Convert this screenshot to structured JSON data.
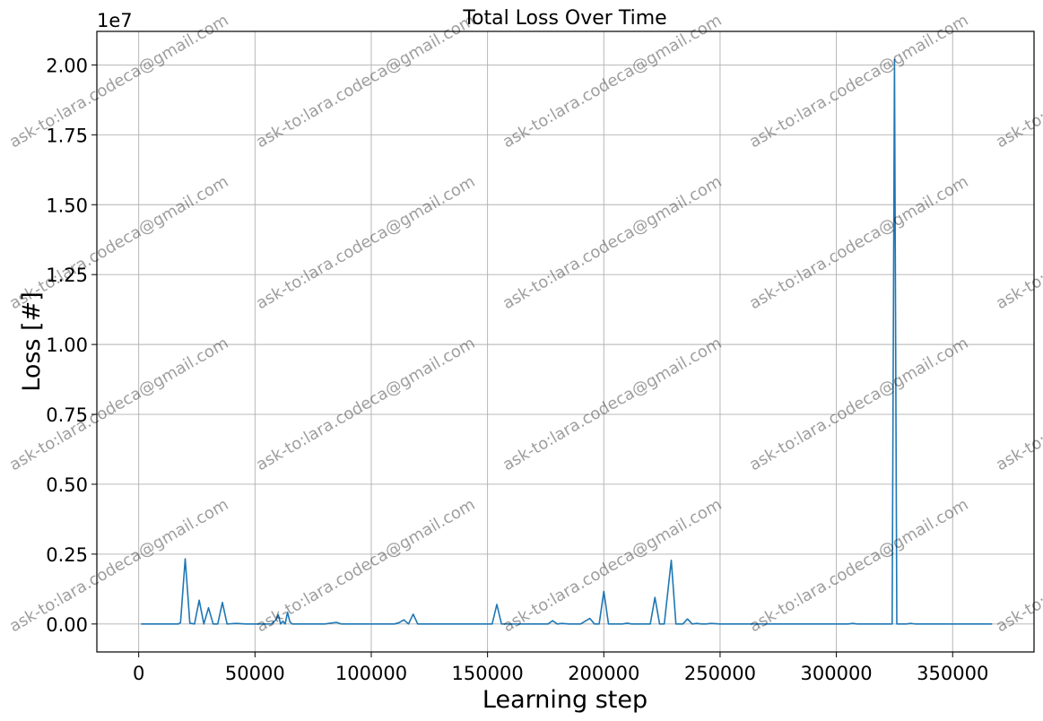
{
  "chart_data": {
    "type": "line",
    "title": "Total Loss Over Time",
    "xlabel": "Learning step",
    "ylabel": "Loss [#]",
    "y_scale_label": "1e7",
    "y_multiplier": 10000000,
    "xlim": [
      -18000,
      385000
    ],
    "ylim": [
      -1000000,
      21200000
    ],
    "x_ticks": [
      0,
      50000,
      100000,
      150000,
      200000,
      250000,
      300000,
      350000
    ],
    "x_tick_labels": [
      "0",
      "50000",
      "100000",
      "150000",
      "200000",
      "250000",
      "300000",
      "350000"
    ],
    "y_ticks": [
      0,
      2500000,
      5000000,
      7500000,
      10000000,
      12500000,
      15000000,
      17500000,
      20000000
    ],
    "y_tick_labels": [
      "0.00",
      "0.25",
      "0.50",
      "0.75",
      "1.00",
      "1.25",
      "1.50",
      "1.75",
      "2.00"
    ],
    "grid": true,
    "series": [
      {
        "color": "#1f77b4",
        "x": [
          1000,
          17000,
          18000,
          20000,
          22000,
          24000,
          26000,
          28000,
          30000,
          32000,
          34000,
          36000,
          38000,
          42000,
          46000,
          50000,
          55000,
          57000,
          59000,
          60000,
          61000,
          62000,
          63000,
          64000,
          65000,
          66000,
          67000,
          68000,
          70000,
          72000,
          80000,
          85000,
          87000,
          90000,
          95000,
          105000,
          110000,
          112000,
          114000,
          116000,
          118000,
          120000,
          125000,
          130000,
          140000,
          145000,
          150000,
          152000,
          154000,
          156000,
          160000,
          170000,
          176000,
          178000,
          180000,
          182000,
          185000,
          190000,
          194000,
          196000,
          198000,
          200000,
          202000,
          205000,
          208000,
          210000,
          212000,
          216000,
          220000,
          222000,
          224000,
          226000,
          229000,
          231000,
          234000,
          236000,
          238000,
          240000,
          242000,
          244000,
          246000,
          250000,
          260000,
          270000,
          280000,
          290000,
          300000,
          305000,
          307000,
          309000,
          315000,
          322000,
          324000,
          325000,
          326000,
          327000,
          330000,
          332000,
          334000,
          340000,
          350000,
          360000,
          367000
        ],
        "y": [
          0,
          0,
          50000,
          2330000,
          30000,
          0,
          850000,
          0,
          580000,
          0,
          0,
          770000,
          0,
          20000,
          0,
          0,
          0,
          0,
          150000,
          330000,
          0,
          100000,
          0,
          420000,
          80000,
          0,
          0,
          0,
          0,
          0,
          0,
          60000,
          0,
          0,
          0,
          0,
          0,
          50000,
          150000,
          0,
          350000,
          0,
          0,
          0,
          0,
          0,
          0,
          0,
          700000,
          0,
          0,
          0,
          0,
          120000,
          0,
          20000,
          0,
          0,
          200000,
          0,
          0,
          1170000,
          0,
          0,
          0,
          30000,
          0,
          0,
          0,
          950000,
          0,
          0,
          2280000,
          0,
          0,
          180000,
          0,
          20000,
          0,
          0,
          20000,
          0,
          0,
          0,
          0,
          0,
          0,
          0,
          20000,
          0,
          0,
          0,
          0,
          20200000,
          0,
          0,
          0,
          20000,
          0,
          0,
          0,
          0,
          0
        ]
      }
    ]
  },
  "watermark": {
    "text": "ask-to:lara.codeca@gmail.com"
  }
}
